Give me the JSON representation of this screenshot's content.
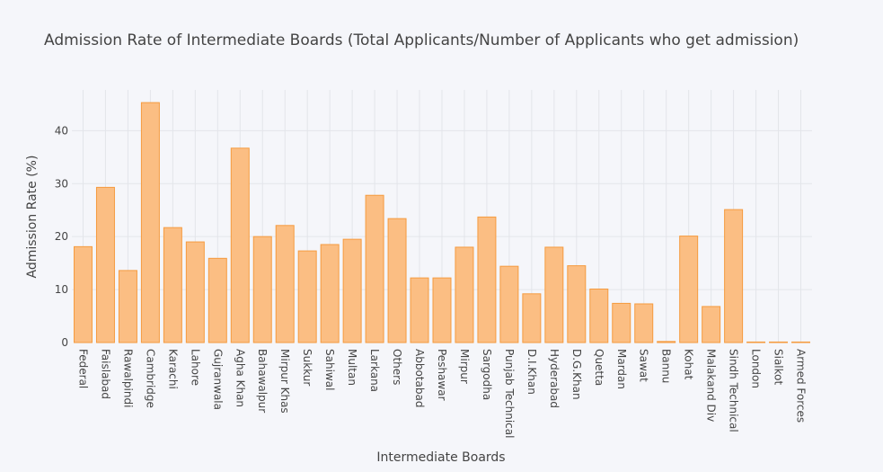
{
  "chart_data": {
    "type": "bar",
    "title": "Admission Rate of Intermediate Boards (Total Applicants/Number of Applicants who get admission)",
    "xlabel": "Intermediate Boards",
    "ylabel": "Admission Rate (%)",
    "categories": [
      "Federal",
      "Faislabad",
      "Rawalpindi",
      "Cambridge",
      "Karachi",
      "Lahore",
      "Gujranwala",
      "Agha Khan",
      "Bahawalpur",
      "Mirpur Khas",
      "Sukkur",
      "Sahiwal",
      "Multan",
      "Larkana",
      "Others",
      "Abbotabad",
      "Peshawar",
      "Mirpur",
      "Sargodha",
      "Punjab Technical",
      "D.I.Khan",
      "Hyderabad",
      "D.G.Khan",
      "Quetta",
      "Mardan",
      "Sawat",
      "Bannu",
      "Kohat",
      "Malakand Div",
      "Sindh Technical",
      "London",
      "Sialkot",
      "Armed Forces"
    ],
    "values": [
      18.1,
      29.3,
      13.6,
      45.3,
      21.7,
      19.0,
      15.9,
      36.7,
      20.0,
      22.1,
      17.3,
      18.5,
      19.5,
      27.8,
      23.4,
      12.2,
      12.2,
      18.0,
      23.7,
      14.4,
      9.2,
      18.0,
      14.5,
      10.1,
      7.4,
      7.3,
      0.2,
      20.1,
      6.8,
      25.1,
      0.1,
      0.1,
      0.1
    ],
    "yticks": [
      0,
      10,
      20,
      30,
      40
    ],
    "ylim": [
      0,
      47.7
    ],
    "grid": true,
    "colors": {
      "bar_fill": "#fbbe83",
      "bar_stroke": "#f59b3f",
      "background": "#f5f6fa",
      "grid": "#e3e5ea",
      "text": "#444444"
    }
  }
}
